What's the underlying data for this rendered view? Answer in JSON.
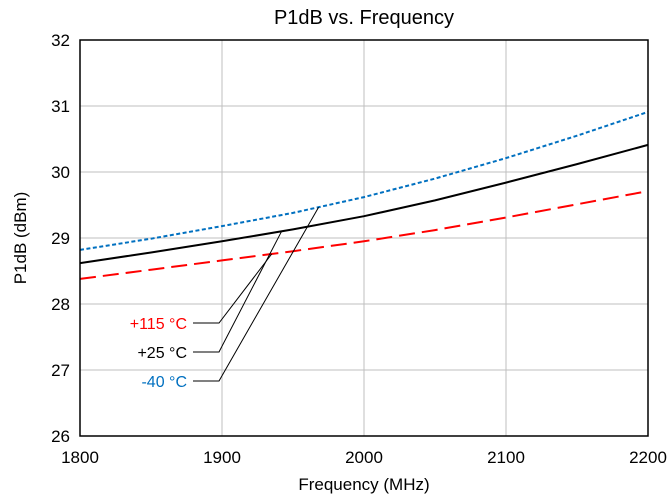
{
  "chart_data": {
    "type": "line",
    "title": "P1dB vs. Frequency",
    "xlabel": "Frequency (MHz)",
    "ylabel": "P1dB (dBm)",
    "xlim": [
      1800,
      2200
    ],
    "ylim": [
      26,
      32
    ],
    "x_ticks": [
      1800,
      1900,
      2000,
      2100,
      2200
    ],
    "y_ticks": [
      26,
      27,
      28,
      29,
      30,
      31,
      32
    ],
    "grid": true,
    "legend": "none",
    "series": [
      {
        "name": "+115 °C",
        "color": "#ff0000",
        "line_style": "long-dash",
        "label_anchor_x": 1935,
        "x": [
          1800,
          1850,
          1900,
          1950,
          2000,
          2050,
          2100,
          2150,
          2200
        ],
        "values": [
          28.38,
          28.52,
          28.66,
          28.8,
          28.95,
          29.12,
          29.31,
          29.51,
          29.71
        ]
      },
      {
        "name": "+25 °C",
        "color": "#000000",
        "line_style": "solid",
        "label_anchor_x": 1942,
        "x": [
          1800,
          1850,
          1900,
          1950,
          2000,
          2050,
          2100,
          2150,
          2200
        ],
        "values": [
          28.62,
          28.78,
          28.95,
          29.13,
          29.33,
          29.57,
          29.84,
          30.12,
          30.41
        ]
      },
      {
        "name": "-40 °C",
        "color": "#0070c0",
        "line_style": "dotted",
        "label_anchor_x": 1968,
        "x": [
          1800,
          1850,
          1900,
          1950,
          2000,
          2050,
          2100,
          2150,
          2200
        ],
        "values": [
          28.82,
          28.99,
          29.18,
          29.38,
          29.62,
          29.9,
          30.21,
          30.55,
          30.91
        ]
      }
    ]
  }
}
